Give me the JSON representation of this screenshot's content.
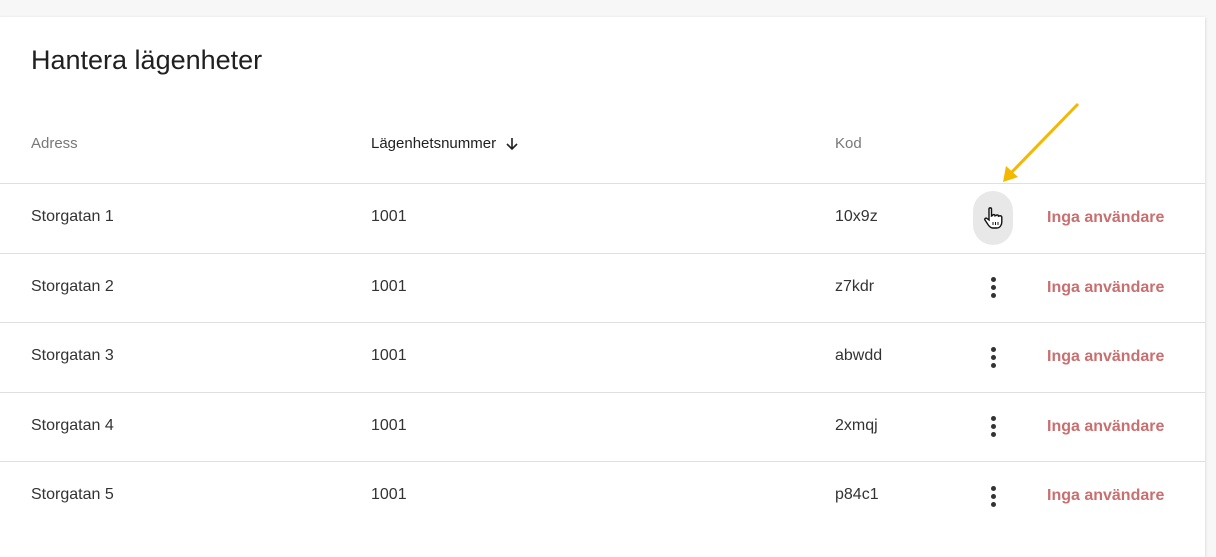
{
  "title": "Hantera lägenheter",
  "columns": [
    {
      "label": "Adress"
    },
    {
      "label": "Lägenhetsnummer",
      "sort": "descending"
    },
    {
      "label": "Kod"
    }
  ],
  "rows": [
    {
      "address": "Storgatan 1",
      "number": "1001",
      "code": "10x9z",
      "users": "Inga användare"
    },
    {
      "address": "Storgatan 2",
      "number": "1001",
      "code": "z7kdr",
      "users": "Inga användare"
    },
    {
      "address": "Storgatan 3",
      "number": "1001",
      "code": "abwdd",
      "users": "Inga användare"
    },
    {
      "address": "Storgatan 4",
      "number": "1001",
      "code": "2xmqj",
      "users": "Inga användare"
    },
    {
      "address": "Storgatan 5",
      "number": "1001",
      "code": "p84c1",
      "users": "Inga användare"
    }
  ],
  "colors": {
    "users_status": "#c96f6f",
    "annotation_arrow": "#f5b800"
  },
  "icons": {
    "sort": "arrow-down-icon",
    "row_menu": "more-vert-icon",
    "cursor": "hand-pointer-icon"
  }
}
